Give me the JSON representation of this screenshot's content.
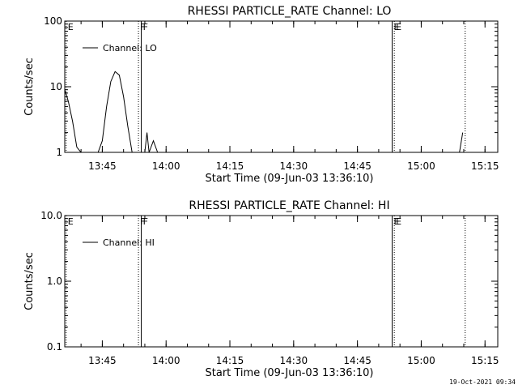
{
  "timestamp": "19-Oct-2021 09:34",
  "chart_data": [
    {
      "type": "line",
      "title": "RHESSI PARTICLE_RATE Channel: LO",
      "xlabel": "Start Time (09-Jun-03 13:36:10)",
      "ylabel": "Counts/sec",
      "y_scale": "log",
      "ylim": [
        1,
        100
      ],
      "yticks": [
        1,
        10,
        100
      ],
      "ytick_labels": [
        "1",
        "10",
        "100"
      ],
      "xlim": [
        "13:36:10",
        "15:18:00"
      ],
      "xticks": [
        "13:45",
        "14:00",
        "14:15",
        "14:30",
        "14:45",
        "15:00",
        "15:15"
      ],
      "legend_position": "top-left",
      "series": [
        {
          "name": "Channel: LO",
          "x": [
            "13:36:10",
            "13:37:00",
            "13:38:00",
            "13:39:00",
            "13:40:00",
            "13:44:00",
            "13:45:00",
            "13:46:00",
            "13:47:00",
            "13:48:00",
            "13:49:00",
            "13:50:00",
            "13:51:00",
            "13:52:00",
            "13:53:00",
            "13:54:00",
            "13:55:00",
            "13:55:30",
            "13:56:00",
            "13:57:00",
            "13:58:00",
            "14:00:00",
            "14:12:00",
            "15:09:00",
            "15:09:45"
          ],
          "y": [
            9,
            6,
            3,
            1.2,
            1,
            1,
            1.5,
            5,
            12,
            17,
            15,
            7,
            2.5,
            1,
            1,
            1,
            1,
            2,
            1,
            1.5,
            1,
            1,
            1,
            1,
            2
          ]
        }
      ],
      "annotations": [
        {
          "label": "E",
          "time": "13:36:30",
          "style": "dotted"
        },
        {
          "label": "F",
          "time": "13:53:30",
          "style": "dotted"
        },
        {
          "label": "F",
          "time": "13:54:10",
          "style": "solid"
        },
        {
          "label": "E",
          "time": "14:53:10",
          "style": "solid"
        },
        {
          "label": "E",
          "time": "14:53:40",
          "style": "dotted"
        },
        {
          "label": "",
          "time": "15:10:20",
          "style": "dotted"
        }
      ]
    },
    {
      "type": "line",
      "title": "RHESSI PARTICLE_RATE Channel: HI",
      "xlabel": "Start Time (09-Jun-03 13:36:10)",
      "ylabel": "Counts/sec",
      "y_scale": "log",
      "ylim": [
        0.1,
        10
      ],
      "yticks": [
        0.1,
        1,
        10
      ],
      "ytick_labels": [
        "0.1",
        "1.0",
        "10.0"
      ],
      "xlim": [
        "13:36:10",
        "15:18:00"
      ],
      "xticks": [
        "13:45",
        "14:00",
        "14:15",
        "14:30",
        "14:45",
        "15:00",
        "15:15"
      ],
      "legend_position": "top-left",
      "series": [
        {
          "name": "Channel: HI",
          "x": [],
          "y": []
        }
      ],
      "annotations": [
        {
          "label": "E",
          "time": "13:36:30",
          "style": "dotted"
        },
        {
          "label": "F",
          "time": "13:53:30",
          "style": "dotted"
        },
        {
          "label": "F",
          "time": "13:54:10",
          "style": "solid"
        },
        {
          "label": "E",
          "time": "14:53:10",
          "style": "solid"
        },
        {
          "label": "E",
          "time": "14:53:40",
          "style": "dotted"
        },
        {
          "label": "",
          "time": "15:10:20",
          "style": "dotted"
        }
      ]
    }
  ]
}
